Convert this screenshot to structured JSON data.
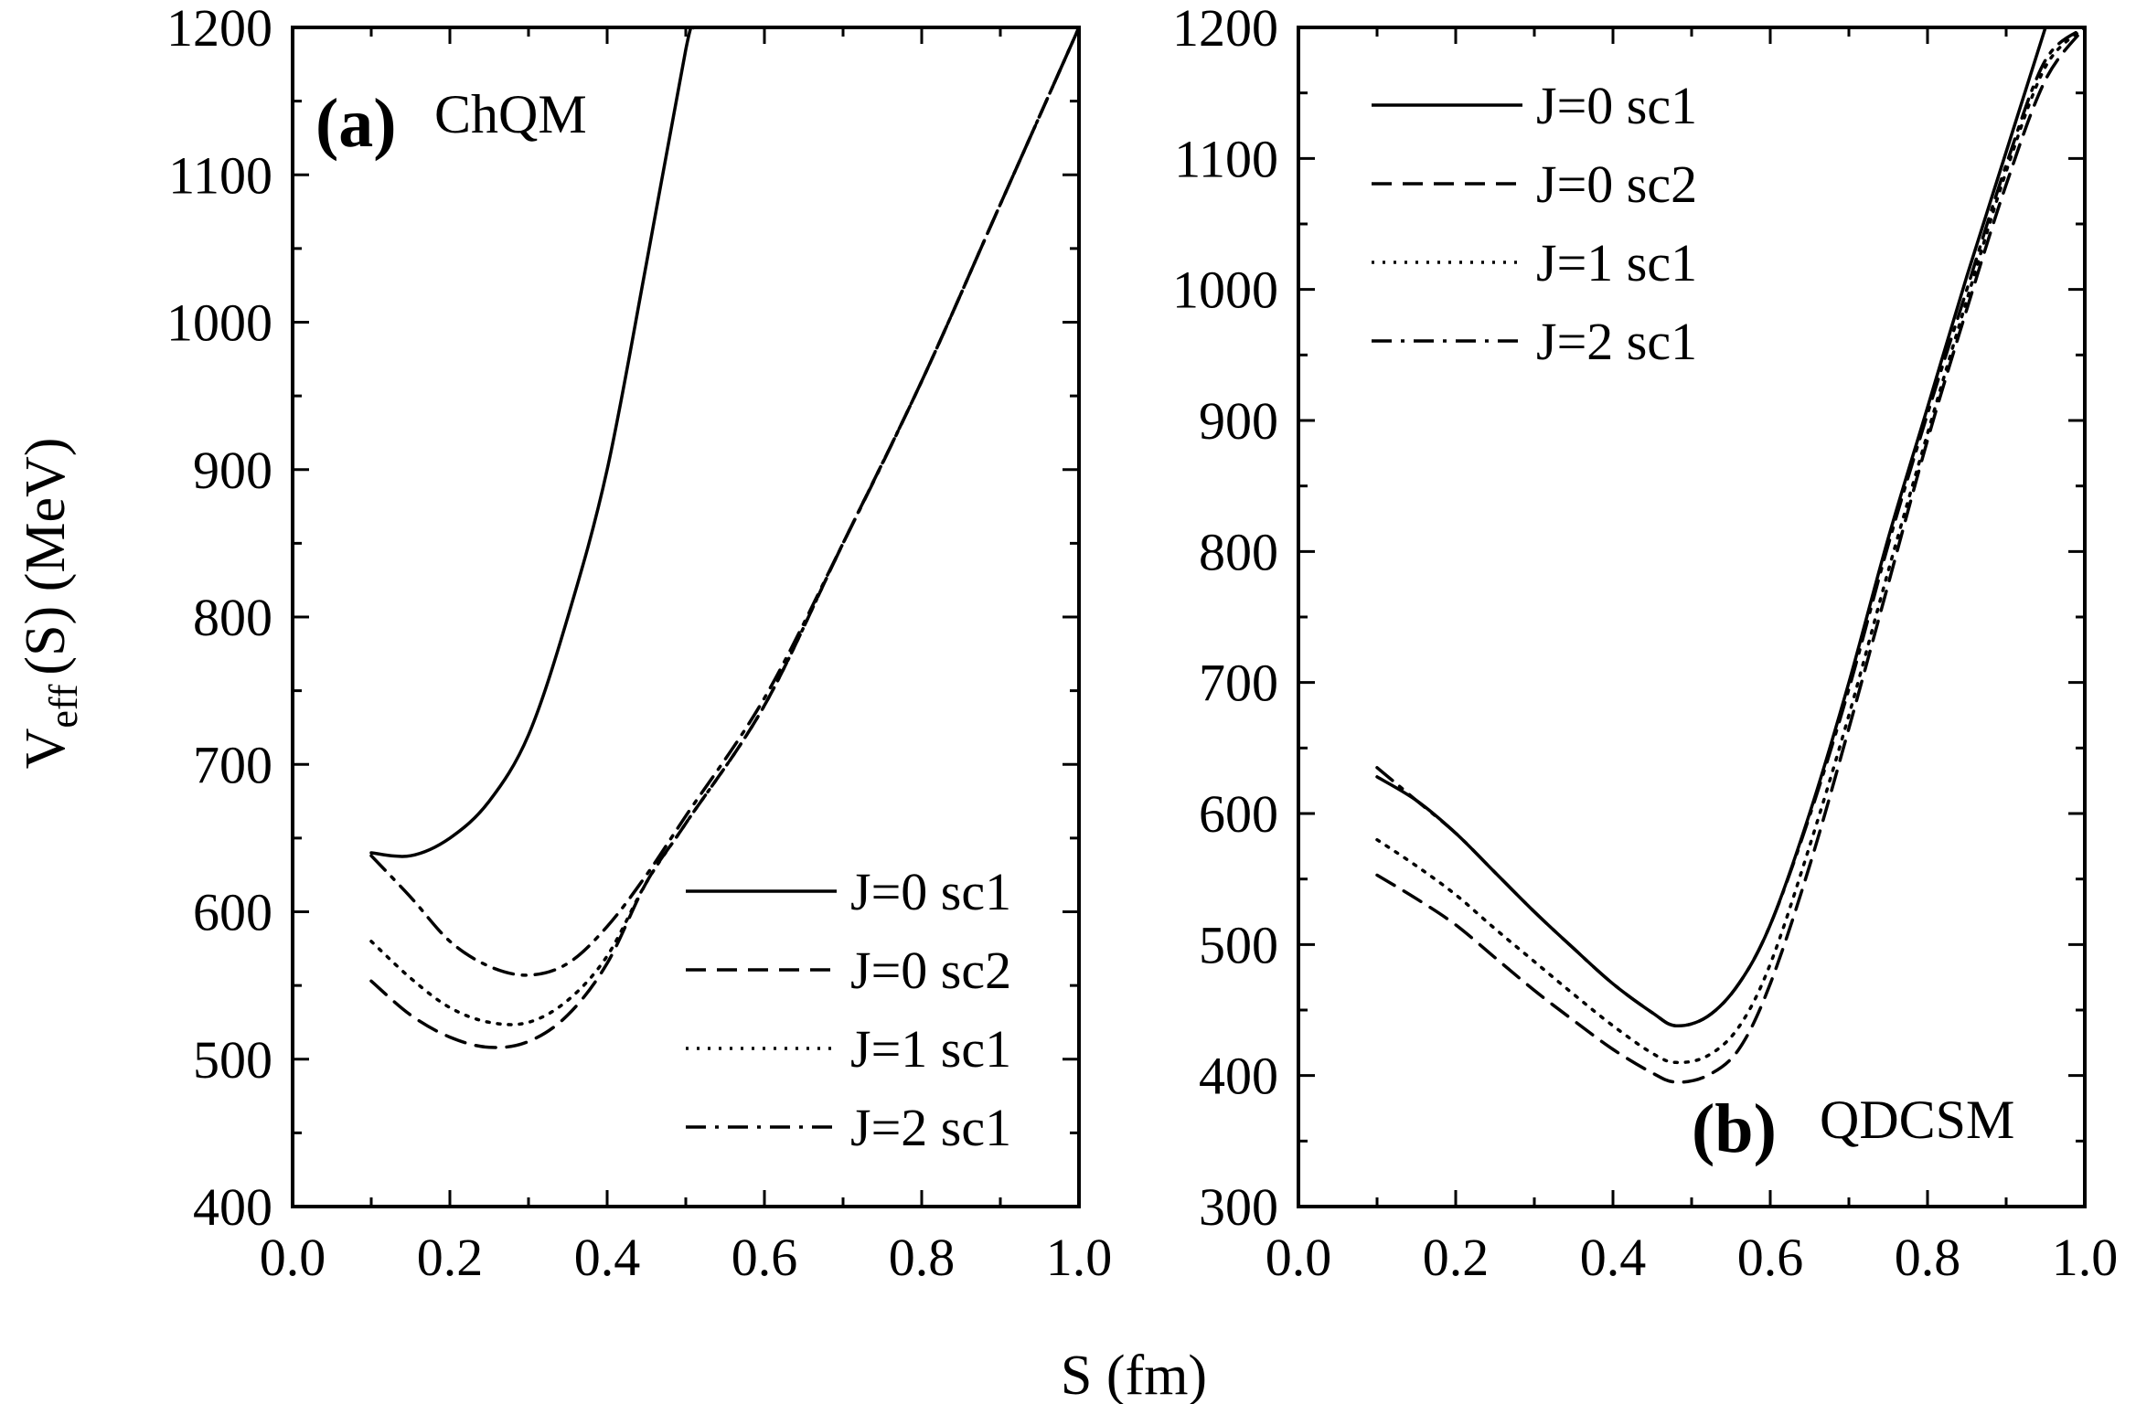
{
  "figure": {
    "shared_xlabel": "S (fm)",
    "ylabel_main": "V",
    "ylabel_sub": "eff",
    "ylabel_rest": "(S) (MeV)"
  },
  "chart_data": [
    {
      "type": "line",
      "panel_tag": "(a)",
      "panel_model": "ChQM",
      "xlabel": "S (fm)",
      "ylabel": "Veff(S) (MeV)",
      "xlim": [
        0.0,
        1.0
      ],
      "ylim": [
        400,
        1200
      ],
      "x_ticks": [
        0.0,
        0.2,
        0.4,
        0.6,
        0.8,
        1.0
      ],
      "x_tick_labels": [
        "0.0",
        "0.2",
        "0.4",
        "0.6",
        "0.8",
        "1.0"
      ],
      "y_ticks": [
        400,
        500,
        600,
        700,
        800,
        900,
        1000,
        1100,
        1200
      ],
      "y_tick_labels": [
        "400",
        "500",
        "600",
        "700",
        "800",
        "900",
        "1000",
        "1100",
        "1200"
      ],
      "legend_position": "bottom-right",
      "series": [
        {
          "name": "J=0 sc1",
          "style": "solid",
          "x": [
            0.1,
            0.15,
            0.2,
            0.25,
            0.3,
            0.35,
            0.4,
            0.45,
            0.5,
            0.51
          ],
          "y": [
            640,
            638,
            650,
            675,
            720,
            800,
            900,
            1040,
            1185,
            1200
          ]
        },
        {
          "name": "J=0 sc2",
          "style": "dashed",
          "x": [
            0.1,
            0.15,
            0.2,
            0.25,
            0.3,
            0.35,
            0.4,
            0.45,
            0.5,
            0.6,
            0.7,
            0.8,
            0.9,
            1.0
          ],
          "y": [
            553,
            530,
            515,
            508,
            512,
            530,
            565,
            620,
            660,
            740,
            850,
            960,
            1080,
            1200
          ]
        },
        {
          "name": "J=1 sc1",
          "style": "dotted",
          "x": [
            0.1,
            0.15,
            0.2,
            0.25,
            0.3,
            0.35,
            0.4,
            0.45,
            0.5,
            0.6,
            0.7,
            0.8,
            0.9,
            1.0
          ],
          "y": [
            580,
            555,
            535,
            525,
            525,
            540,
            570,
            620,
            660,
            740,
            850,
            960,
            1080,
            1200
          ]
        },
        {
          "name": "J=2 sc1",
          "style": "dashdot",
          "x": [
            0.1,
            0.15,
            0.2,
            0.25,
            0.3,
            0.35,
            0.4,
            0.45,
            0.5,
            0.6,
            0.7,
            0.8,
            0.9,
            1.0
          ],
          "y": [
            638,
            610,
            580,
            563,
            557,
            565,
            590,
            625,
            665,
            745,
            850,
            960,
            1080,
            1200
          ]
        }
      ]
    },
    {
      "type": "line",
      "panel_tag": "(b)",
      "panel_model": "QDCSM",
      "xlabel": "S (fm)",
      "ylabel": "Veff(S) (MeV)",
      "xlim": [
        0.0,
        1.0
      ],
      "ylim": [
        300,
        1200
      ],
      "x_ticks": [
        0.0,
        0.2,
        0.4,
        0.6,
        0.8,
        1.0
      ],
      "x_tick_labels": [
        "0.0",
        "0.2",
        "0.4",
        "0.6",
        "0.8",
        "1.0"
      ],
      "y_ticks": [
        300,
        400,
        500,
        600,
        700,
        800,
        900,
        1000,
        1100,
        1200
      ],
      "y_tick_labels": [
        "300",
        "400",
        "500",
        "600",
        "700",
        "800",
        "900",
        "1000",
        "1100",
        "1200"
      ],
      "legend_position": "top-left",
      "series": [
        {
          "name": "J=0 sc1",
          "style": "solid",
          "x": [
            0.1,
            0.15,
            0.2,
            0.25,
            0.3,
            0.35,
            0.4,
            0.45,
            0.48,
            0.52,
            0.56,
            0.6,
            0.65,
            0.7,
            0.75,
            0.8,
            0.85,
            0.9,
            0.95
          ],
          "y": [
            628,
            610,
            585,
            555,
            525,
            497,
            470,
            448,
            438,
            445,
            470,
            515,
            600,
            700,
            810,
            910,
            1010,
            1105,
            1200
          ]
        },
        {
          "name": "J=0 sc2",
          "style": "dashed",
          "x": [
            0.1,
            0.15,
            0.2,
            0.25,
            0.3,
            0.35,
            0.4,
            0.45,
            0.48,
            0.52,
            0.56,
            0.6,
            0.65,
            0.7,
            0.75,
            0.8,
            0.85,
            0.9,
            0.95,
            1.0
          ],
          "y": [
            553,
            535,
            515,
            490,
            465,
            442,
            420,
            402,
            395,
            400,
            420,
            470,
            560,
            665,
            775,
            885,
            985,
            1080,
            1160,
            1200
          ]
        },
        {
          "name": "J=1 sc1",
          "style": "dotted",
          "x": [
            0.1,
            0.15,
            0.2,
            0.25,
            0.3,
            0.35,
            0.4,
            0.45,
            0.48,
            0.52,
            0.56,
            0.6,
            0.65,
            0.7,
            0.75,
            0.8,
            0.85,
            0.9,
            0.95,
            1.0
          ],
          "y": [
            580,
            560,
            538,
            512,
            487,
            462,
            438,
            417,
            410,
            415,
            437,
            485,
            575,
            675,
            785,
            890,
            992,
            1090,
            1170,
            1200
          ]
        },
        {
          "name": "J=2 sc1",
          "style": "dashdot",
          "x": [
            0.1,
            0.15,
            0.2,
            0.25,
            0.3,
            0.35,
            0.4,
            0.45,
            0.48,
            0.52,
            0.56,
            0.6,
            0.65,
            0.7,
            0.75,
            0.8,
            0.85,
            0.9,
            0.95,
            1.0
          ],
          "y": [
            635,
            610,
            585,
            555,
            525,
            497,
            470,
            448,
            438,
            445,
            470,
            515,
            598,
            695,
            805,
            905,
            1000,
            1095,
            1175,
            1200
          ]
        }
      ]
    }
  ]
}
